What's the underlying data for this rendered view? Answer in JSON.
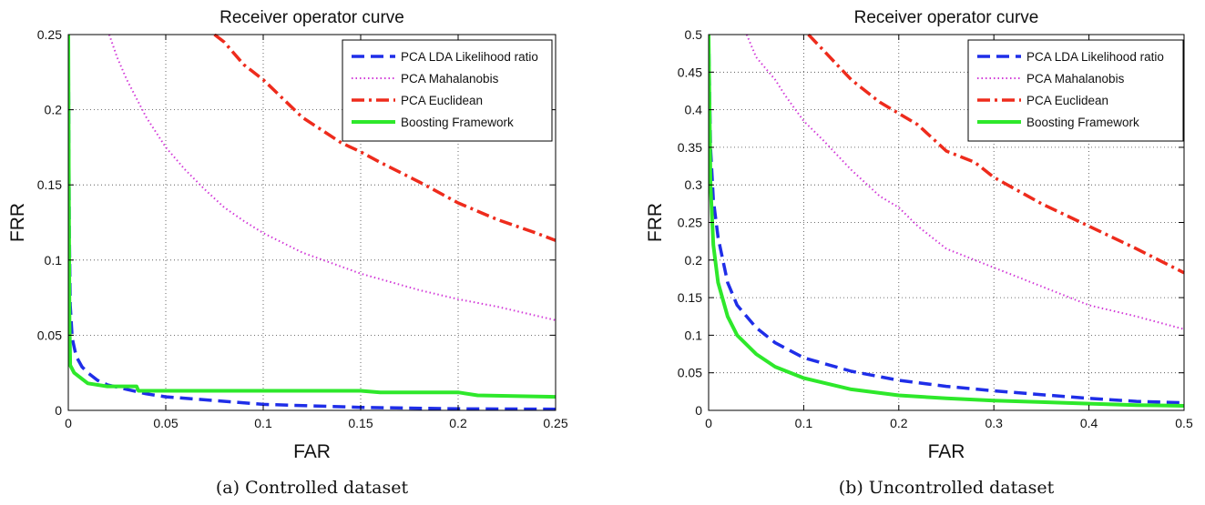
{
  "chart_data": [
    {
      "type": "line",
      "title": "Receiver operator curve",
      "xlabel": "FAR",
      "ylabel": "FRR",
      "caption": "(a) Controlled dataset",
      "xlim": [
        0,
        0.25
      ],
      "ylim": [
        0,
        0.25
      ],
      "xticks": [
        0,
        0.05,
        0.1,
        0.15,
        0.2,
        0.25
      ],
      "xtick_labels": [
        "0",
        "0.05",
        "0.1",
        "0.15",
        "0.2",
        "0.25"
      ],
      "yticks": [
        0,
        0.05,
        0.1,
        0.15,
        0.2,
        0.25
      ],
      "ytick_labels": [
        "0",
        "0.05",
        "0.1",
        "0.15",
        "0.2",
        "0.25"
      ],
      "grid": true,
      "legend_position": "top-right",
      "series": [
        {
          "name": "PCA LDA Likelihood ratio",
          "color": "#1f2ee8",
          "dash": "dashed",
          "x": [
            0,
            0.0005,
            0.001,
            0.002,
            0.004,
            0.007,
            0.01,
            0.015,
            0.02,
            0.03,
            0.04,
            0.05,
            0.07,
            0.1,
            0.15,
            0.2,
            0.25
          ],
          "y": [
            0.25,
            0.12,
            0.07,
            0.048,
            0.036,
            0.029,
            0.025,
            0.02,
            0.017,
            0.014,
            0.011,
            0.009,
            0.007,
            0.004,
            0.002,
            0.001,
            0.0008
          ]
        },
        {
          "name": "PCA Mahalanobis",
          "color": "#d23ad8",
          "dash": "dotted",
          "x": [
            0.021,
            0.025,
            0.03,
            0.04,
            0.05,
            0.06,
            0.07,
            0.08,
            0.09,
            0.1,
            0.12,
            0.15,
            0.18,
            0.2,
            0.22,
            0.25
          ],
          "y": [
            0.25,
            0.235,
            0.22,
            0.195,
            0.175,
            0.16,
            0.147,
            0.135,
            0.126,
            0.118,
            0.105,
            0.091,
            0.08,
            0.074,
            0.069,
            0.06
          ]
        },
        {
          "name": "PCA Euclidean",
          "color": "#ee2b1c",
          "dash": "dashdot",
          "x": [
            0.075,
            0.08,
            0.09,
            0.1,
            0.12,
            0.14,
            0.15,
            0.16,
            0.18,
            0.2,
            0.22,
            0.24,
            0.25
          ],
          "y": [
            0.25,
            0.245,
            0.23,
            0.22,
            0.195,
            0.178,
            0.172,
            0.165,
            0.152,
            0.138,
            0.127,
            0.118,
            0.113
          ]
        },
        {
          "name": "Boosting Framework",
          "color": "#2ee82b",
          "dash": "solid",
          "x": [
            0,
            0.0003,
            0.0006,
            0.001,
            0.003,
            0.006,
            0.01,
            0.02,
            0.035,
            0.036,
            0.05,
            0.1,
            0.15,
            0.16,
            0.2,
            0.21,
            0.25
          ],
          "y": [
            0.25,
            0.15,
            0.06,
            0.03,
            0.025,
            0.022,
            0.018,
            0.016,
            0.016,
            0.013,
            0.013,
            0.013,
            0.013,
            0.012,
            0.012,
            0.01,
            0.009
          ]
        }
      ]
    },
    {
      "type": "line",
      "title": "Receiver operator curve",
      "xlabel": "FAR",
      "ylabel": "FRR",
      "caption": "(b) Uncontrolled dataset",
      "xlim": [
        0,
        0.5
      ],
      "ylim": [
        0,
        0.5
      ],
      "xticks": [
        0,
        0.1,
        0.2,
        0.3,
        0.4,
        0.5
      ],
      "xtick_labels": [
        "0",
        "0.1",
        "0.2",
        "0.3",
        "0.4",
        "0.5"
      ],
      "yticks": [
        0,
        0.05,
        0.1,
        0.15,
        0.2,
        0.25,
        0.3,
        0.35,
        0.4,
        0.45,
        0.5
      ],
      "ytick_labels": [
        "0",
        "0.05",
        "0.1",
        "0.15",
        "0.2",
        "0.25",
        "0.3",
        "0.35",
        "0.4",
        "0.45",
        "0.5"
      ],
      "grid": true,
      "legend_position": "top-right",
      "series": [
        {
          "name": "PCA LDA Likelihood ratio",
          "color": "#1f2ee8",
          "dash": "dashed",
          "x": [
            0,
            0.002,
            0.005,
            0.01,
            0.02,
            0.03,
            0.05,
            0.07,
            0.1,
            0.15,
            0.2,
            0.25,
            0.3,
            0.35,
            0.4,
            0.45,
            0.5
          ],
          "y": [
            0.5,
            0.35,
            0.28,
            0.23,
            0.17,
            0.14,
            0.11,
            0.09,
            0.07,
            0.052,
            0.04,
            0.032,
            0.026,
            0.021,
            0.016,
            0.012,
            0.01
          ]
        },
        {
          "name": "PCA Mahalanobis",
          "color": "#d23ad8",
          "dash": "dotted",
          "x": [
            0.04,
            0.05,
            0.06,
            0.07,
            0.08,
            0.1,
            0.12,
            0.15,
            0.18,
            0.2,
            0.22,
            0.25,
            0.3,
            0.35,
            0.4,
            0.45,
            0.5
          ],
          "y": [
            0.5,
            0.47,
            0.455,
            0.44,
            0.42,
            0.385,
            0.36,
            0.32,
            0.285,
            0.27,
            0.245,
            0.215,
            0.19,
            0.165,
            0.14,
            0.125,
            0.108
          ]
        },
        {
          "name": "PCA Euclidean",
          "color": "#ee2b1c",
          "dash": "dashdot",
          "x": [
            0.105,
            0.12,
            0.15,
            0.18,
            0.2,
            0.22,
            0.25,
            0.28,
            0.3,
            0.35,
            0.4,
            0.45,
            0.5
          ],
          "y": [
            0.5,
            0.48,
            0.44,
            0.41,
            0.395,
            0.38,
            0.345,
            0.33,
            0.31,
            0.275,
            0.245,
            0.215,
            0.183
          ]
        },
        {
          "name": "Boosting Framework",
          "color": "#2ee82b",
          "dash": "solid",
          "x": [
            0,
            0.002,
            0.005,
            0.01,
            0.02,
            0.03,
            0.05,
            0.07,
            0.1,
            0.15,
            0.2,
            0.25,
            0.3,
            0.35,
            0.4,
            0.45,
            0.5
          ],
          "y": [
            0.5,
            0.3,
            0.22,
            0.17,
            0.125,
            0.1,
            0.075,
            0.058,
            0.043,
            0.028,
            0.02,
            0.016,
            0.013,
            0.011,
            0.009,
            0.007,
            0.006
          ]
        }
      ]
    }
  ]
}
